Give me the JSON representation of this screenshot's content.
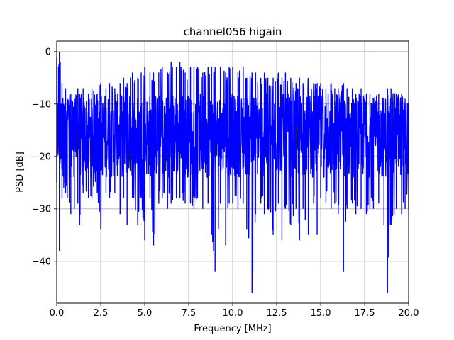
{
  "chart_data": {
    "type": "line",
    "title": "channel056 higain",
    "xlabel": "Frequency [MHz]",
    "ylabel": "PSD [dB]",
    "xlim": [
      0,
      20
    ],
    "ylim": [
      -48,
      2
    ],
    "xticks": [
      0,
      2.5,
      5,
      7.5,
      10,
      12.5,
      15,
      17.5,
      20
    ],
    "xtick_labels": [
      "0.0",
      "2.5",
      "5.0",
      "7.5",
      "10.0",
      "12.5",
      "15.0",
      "17.5",
      "20.0"
    ],
    "yticks": [
      0,
      -10,
      -20,
      -30,
      -40
    ],
    "ytick_labels": [
      "0",
      "−10",
      "−20",
      "−30",
      "−40"
    ],
    "grid": true,
    "series": [
      {
        "color": "#0000ff",
        "sampled_envelope": {
          "x": [
            0.0,
            0.1,
            0.15,
            0.2,
            0.3,
            0.4,
            0.5,
            0.6,
            0.8,
            1.0,
            1.2,
            1.3,
            1.5,
            1.8,
            2.0,
            2.3,
            2.5,
            2.8,
            3.0,
            3.3,
            3.6,
            3.8,
            4.0,
            4.3,
            4.6,
            4.8,
            5.0,
            5.3,
            5.5,
            5.8,
            6.0,
            6.3,
            6.5,
            6.8,
            7.0,
            7.3,
            7.6,
            7.8,
            8.0,
            8.3,
            8.6,
            8.8,
            9.0,
            9.3,
            9.6,
            9.8,
            10.0,
            10.3,
            10.6,
            10.8,
            11.1,
            11.3,
            11.6,
            11.8,
            12.0,
            12.3,
            12.6,
            12.8,
            13.0,
            13.3,
            13.6,
            13.8,
            14.0,
            14.3,
            14.6,
            14.8,
            15.0,
            15.3,
            15.6,
            15.8,
            16.0,
            16.3,
            16.5,
            16.8,
            17.0,
            17.3,
            17.6,
            17.8,
            18.0,
            18.3,
            18.6,
            18.8,
            19.0,
            19.3,
            19.6,
            19.8,
            20.0
          ],
          "max": [
            -1,
            -3,
            0,
            -2,
            -6,
            -10,
            -7,
            -9,
            -8,
            -9,
            -7,
            -8,
            -7,
            -8,
            -7,
            -8,
            -6,
            -7,
            -6,
            -7,
            -6,
            -5,
            -6,
            -4,
            -5,
            -4,
            -3,
            -4,
            -4,
            -4,
            -3,
            -4,
            -2,
            -3,
            -2,
            -4,
            -3,
            -3,
            -3,
            -4,
            -3,
            -3,
            -3,
            -3,
            -4,
            -3,
            -3,
            -4,
            -3,
            -5,
            -4,
            -4,
            -5,
            -4,
            -5,
            -5,
            -4,
            -5,
            -4,
            -5,
            -6,
            -5,
            -6,
            -5,
            -6,
            -6,
            -6,
            -7,
            -6,
            -7,
            -7,
            -6,
            -7,
            -7,
            -8,
            -7,
            -8,
            -8,
            -9,
            -8,
            -9,
            -7,
            -7,
            -8,
            -8,
            -9,
            -10
          ],
          "min": [
            -25,
            -18,
            -38,
            -20,
            -28,
            -26,
            -27,
            -28,
            -31,
            -30,
            -29,
            -33,
            -27,
            -28,
            -28,
            -27,
            -34,
            -27,
            -28,
            -27,
            -31,
            -28,
            -33,
            -28,
            -33,
            -28,
            -36,
            -28,
            -37,
            -29,
            -28,
            -30,
            -29,
            -28,
            -28,
            -29,
            -29,
            -30,
            -28,
            -30,
            -29,
            -35,
            -42,
            -29,
            -37,
            -29,
            -29,
            -30,
            -29,
            -34,
            -46,
            -31,
            -29,
            -31,
            -30,
            -35,
            -29,
            -36,
            -30,
            -33,
            -30,
            -36,
            -30,
            -35,
            -29,
            -35,
            -28,
            -29,
            -30,
            -29,
            -31,
            -42,
            -30,
            -29,
            -31,
            -30,
            -31,
            -30,
            -30,
            -29,
            -33,
            -46,
            -33,
            -30,
            -31,
            -30,
            -30
          ]
        }
      }
    ]
  }
}
